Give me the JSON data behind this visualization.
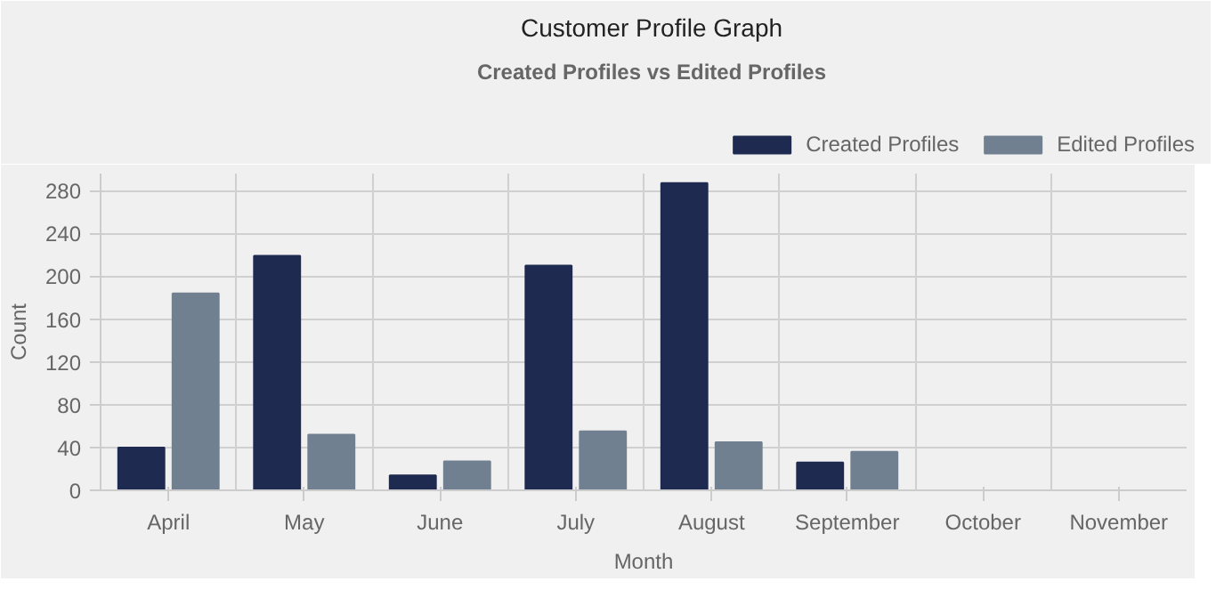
{
  "chart_data": {
    "type": "bar",
    "title": "Customer Profile Graph",
    "subtitle": "Created Profiles vs Edited Profiles",
    "xlabel": "Month",
    "ylabel": "Count",
    "categories": [
      "April",
      "May",
      "June",
      "July",
      "August",
      "September",
      "October",
      "November"
    ],
    "series": [
      {
        "name": "Created Profiles",
        "color": "#1e2a50",
        "values": [
          40,
          219,
          14,
          210,
          287,
          26,
          null,
          null
        ]
      },
      {
        "name": "Edited Profiles",
        "color": "#708090",
        "values": [
          184,
          52,
          27,
          55,
          45,
          36,
          null,
          null
        ]
      }
    ],
    "ylim": [
      0,
      296
    ],
    "yticks": [
      0,
      40,
      80,
      120,
      160,
      200,
      240,
      280
    ],
    "grid": true,
    "legend": "top"
  }
}
